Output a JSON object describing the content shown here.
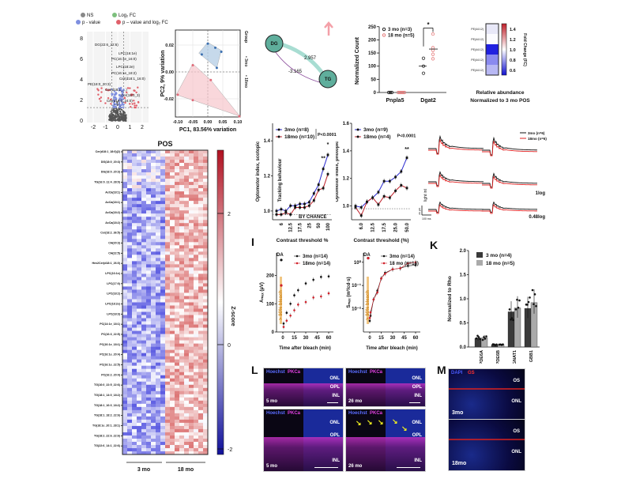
{
  "volcano": {
    "legend": [
      "NS",
      "Log₂ FC",
      "p - value",
      "p – value and log₂ FC"
    ],
    "legend_colors": [
      "#888888",
      "#7dbf7d",
      "#7f8fe0",
      "#e0606a"
    ],
    "x_ticks": [
      "-2",
      "-1",
      "0",
      "1",
      "2"
    ],
    "y_ticks": [
      "0",
      "2",
      "4",
      "6",
      "8"
    ],
    "annotations": [
      "DG(22:6_22:6)",
      "LPC(16:1e)",
      "PC(16:1e_16:0)",
      "LPC(18:2e)",
      "PC(16:1e_18:2)",
      "Cer(d18:1_16:0)",
      "PE(18:0_20:3)",
      "Cer(d18:1_...)",
      "Cer(18:0_3)",
      "Cer(d18:0_24:0)"
    ]
  },
  "pca": {
    "xlabel": "PC1, 83.56% variation",
    "ylabel": "PC2, 9% variation",
    "x_ticks": [
      "-0.10",
      "-0.05",
      "0.00",
      "0.05",
      "0.10"
    ],
    "y_ticks": [
      "0.02",
      "0.00",
      "-0.02"
    ],
    "legend_title": "Group",
    "legend": [
      "3mo",
      "18mo"
    ],
    "colors": {
      "3mo": "#e06a78",
      "18mo": "#3a6fb0"
    }
  },
  "network": {
    "nodes": [
      "DG",
      "TG"
    ],
    "edge_weights": [
      "2.957",
      "-3.165"
    ],
    "node_color": "#5fae9c",
    "arrow_color": "#f4a0a8"
  },
  "heatmap": {
    "title": "POS",
    "colorbar_label": "Z-score",
    "colorbar_ticks": [
      "2",
      "0",
      "-2"
    ],
    "groups": [
      "3 mo",
      "18 mo"
    ],
    "row_labels": [
      "Cer(d18:1_18:0)(2)",
      "DG(18:0_20:3)",
      "DG(18:0_20:3)",
      "TG(16:0_11:4_28:0)",
      "AcCa(18:1)",
      "AcCa(18:1)",
      "AcCa(18:2)",
      "AcCa(18:2)",
      "Cer(18:2_36:5)",
      "CH(20:3)",
      "CH(22:5)",
      "Hex2Cer(d18:1_26:0)",
      "LPC(16:1e)",
      "LPC(17:0)",
      "LPC(18:2)",
      "LPC(18:2e)",
      "LPC(18:3)",
      "PC(14:1e_18:1)",
      "PC(16:3_22:5)",
      "PC(16:1e_18:1)",
      "PC(16:1e_20:4)",
      "PC(16:1e_22:5)",
      "PC(16:2_20:4)",
      "TG(16:0_22:5_22:6)",
      "TG(18:1_14:0_18:2)",
      "TG(18:1_16:0_18:2)",
      "TG(18:1_18:2_22:6)",
      "TG(18:1e_20:1_28:1)",
      "TG(18:2_22:6_22:6)",
      "TG(22:6_14:1_22:6)"
    ]
  },
  "dotplot": {
    "ylabel": "Normalized Count",
    "categories": [
      "Pnpla5",
      "Dgat2"
    ],
    "y_ticks": [
      "0",
      "50",
      "100",
      "150",
      "200",
      "250"
    ],
    "legend": [
      "3 mo  (n=3)",
      "18 mo  (n=5)"
    ],
    "colors": [
      "#222222",
      "#e57b7b"
    ],
    "significance": "*"
  },
  "smallheat": {
    "row_labels": [
      "PE(44:12)",
      "PE(44:12)",
      "PE(44:12)",
      "PE(44:12)",
      "PE(44:12)"
    ],
    "colorbar_label": "Fold Change (FC)",
    "colorbar_ticks": [
      "1.4",
      "1.2",
      "1.0",
      "0.8",
      "0.6"
    ],
    "caption1": "Relative abundance",
    "caption2": "Normalized to 3 mo POS"
  },
  "optomotor": {
    "scotopic": {
      "ylabel": "Optomotor index, scotopic",
      "xlabel": "Contrast threshold %",
      "legend": [
        "3mo (n=8)",
        "18mo (n=10)"
      ],
      "pvalue": "P<0.0001",
      "x_ticks": [
        "6",
        "12.5",
        "17.5",
        "25",
        "50",
        "100"
      ],
      "y_ticks": [
        "1.0",
        "1.2",
        "1.4"
      ],
      "tracking": "Tracking behaviour",
      "chance": "BY CHANCE",
      "stars": [
        "**",
        "*"
      ]
    },
    "photopic": {
      "ylabel": "Optomotor index, photopic",
      "xlabel": "Contrast threshold (%)",
      "legend": [
        "3mo (n=9)",
        "18mo (n=4)"
      ],
      "pvalue": "P<0.0001",
      "x_ticks": [
        "6.0",
        "12.5",
        "17.5",
        "25.0",
        "50.0"
      ],
      "y_ticks": [
        "1.0",
        "1.2",
        "1.4",
        "1.6"
      ],
      "stars": "**"
    },
    "colors": {
      "3mo": "#2a2ad0",
      "18mo": "#c0202a"
    }
  },
  "erg": {
    "legend": [
      "3mo (n=6)",
      "18mo (n=6)"
    ],
    "labels": [
      "1log",
      "0.48log",
      "light int"
    ],
    "scale": [
      "30 µV",
      "100 ms"
    ]
  },
  "panel_I": {
    "label": "I",
    "amp": {
      "ylabel": "Aₘₐₓ (µV)",
      "xlabel": "Time after bleach (min)",
      "da": "DA",
      "bleach": "> 90% bleach",
      "legend": [
        "3mo (n=14)",
        "18mo (n=14)"
      ],
      "x_ticks": [
        "0",
        "15",
        "30",
        "45",
        "60"
      ],
      "y_ticks": [
        "0",
        "100",
        "200"
      ]
    },
    "sens": {
      "ylabel": "Sₘₐₓ (m²/cd·s)",
      "xlabel": "Time after bleach (min)",
      "da": "DA",
      "bleach": "> 90% bleach",
      "legend": [
        "3mo (n=14)",
        "18 mo (n=14)"
      ],
      "x_ticks": [
        "0",
        "15",
        "30",
        "45",
        "60"
      ],
      "y_ticks": [
        "10⁻²",
        "10⁻¹",
        "10⁰"
      ]
    }
  },
  "panel_K": {
    "label": "K",
    "ylabel": "Normalized to Rho",
    "categories": [
      "PDE6A",
      "PDE6B",
      "GNAT1",
      "GBB1"
    ],
    "legend": [
      "3 mo  (n=4)",
      "18 mo  (n=5)"
    ],
    "colors": [
      "#3a3a3a",
      "#aaaaaa"
    ],
    "y_ticks": [
      "0.0",
      "0.5",
      "1.0",
      "1.5",
      "2.0"
    ]
  },
  "panel_L": {
    "label": "L",
    "stain": [
      "Hoechst",
      "PKCa"
    ],
    "layers": [
      "ONL",
      "OPL",
      "INL"
    ],
    "ages": [
      "5 mo",
      "26 mo",
      "5 mo",
      "26 mo"
    ]
  },
  "panel_M": {
    "label": "M",
    "stain": [
      "DAPI",
      "GS"
    ],
    "layers": [
      "OS",
      "ONL"
    ],
    "ages": [
      "3mo",
      "18mo"
    ]
  },
  "chart_data": [
    {
      "type": "line",
      "title": "",
      "xlabel": "Contrast threshold %",
      "ylabel": "Optomotor index, scotopic",
      "ylim": [
        0.95,
        1.5
      ],
      "series": [
        {
          "name": "3mo (n=8)",
          "values": [
            1.0,
            1.01,
            1.0,
            1.03,
            1.03,
            1.04,
            1.04,
            1.05,
            1.1,
            1.15,
            1.24,
            1.32
          ]
        },
        {
          "name": "18mo (n=10)",
          "values": [
            0.98,
            0.98,
            0.99,
            0.98,
            1.02,
            1.02,
            1.02,
            1.03,
            1.06,
            1.12,
            1.13,
            1.21
          ]
        }
      ]
    },
    {
      "type": "line",
      "title": "",
      "xlabel": "Contrast threshold (%)",
      "ylabel": "Optomotor index, photopic",
      "ylim": [
        0.9,
        1.6
      ],
      "series": [
        {
          "name": "3mo (n=9)",
          "values": [
            1.0,
            0.99,
            1.03,
            1.06,
            1.1,
            1.18,
            1.18,
            1.21,
            1.25,
            1.35
          ]
        },
        {
          "name": "18mo (n=4)",
          "values": [
            0.99,
            0.93,
            1.03,
            1.06,
            1.01,
            1.07,
            1.06,
            1.11,
            1.15,
            1.13
          ]
        }
      ]
    },
    {
      "type": "scatter",
      "xlabel": "Time after bleach (min)",
      "ylabel": "Aₘₐₓ (µV)",
      "ylim": [
        0,
        280
      ],
      "x": [
        1,
        5,
        10,
        15,
        20,
        30,
        40,
        50,
        60
      ],
      "series": [
        {
          "name": "3mo (n=14)",
          "DA": 255,
          "values": [
            30,
            68,
            100,
            130,
            148,
            172,
            185,
            195,
            197
          ]
        },
        {
          "name": "18mo (n=14)",
          "DA": 165,
          "values": [
            18,
            40,
            58,
            77,
            97,
            106,
            122,
            126,
            137
          ]
        }
      ]
    },
    {
      "type": "line",
      "xlabel": "Time after bleach (min)",
      "ylabel": "Sₘₐₓ",
      "log_y": true,
      "x": [
        0,
        1,
        5,
        10,
        15,
        20,
        30,
        40,
        50,
        60
      ],
      "series": [
        {
          "name": "3mo (n=14)",
          "DA": 1.5,
          "values": [
            0.003,
            0.005,
            0.025,
            0.06,
            0.2,
            0.35,
            0.5,
            0.55,
            0.7,
            0.75
          ]
        },
        {
          "name": "18 mo (n=14)",
          "DA": 1.5,
          "values": [
            0.004,
            0.007,
            0.025,
            0.05,
            0.2,
            0.32,
            0.5,
            0.55,
            0.9,
            1.0
          ]
        }
      ]
    },
    {
      "type": "bar",
      "ylabel": "Normalized to Rho",
      "categories": [
        "PDE6A",
        "PDE6B",
        "GNAT1",
        "GBB1"
      ],
      "ylim": [
        0,
        2.0
      ],
      "series": [
        {
          "name": "3 mo (n=4)",
          "values": [
            0.18,
            0.05,
            0.73,
            0.8
          ]
        },
        {
          "name": "18 mo (n=5)",
          "values": [
            0.19,
            0.05,
            0.81,
            0.92
          ]
        }
      ]
    },
    {
      "type": "scatter",
      "ylabel": "Normalized Count",
      "categories": [
        "Pnpla5",
        "Dgat2"
      ],
      "ylim": [
        0,
        250
      ],
      "series": [
        {
          "name": "3 mo (n=3)",
          "values": [
            [
              0,
              0,
              0
            ],
            [
              130,
              100,
              73
            ]
          ]
        },
        {
          "name": "18 mo (n=5)",
          "values": [
            [
              0,
              0,
              0,
              0,
              0
            ],
            [
              222,
              170,
              160,
              145,
              128
            ]
          ]
        }
      ]
    }
  ]
}
